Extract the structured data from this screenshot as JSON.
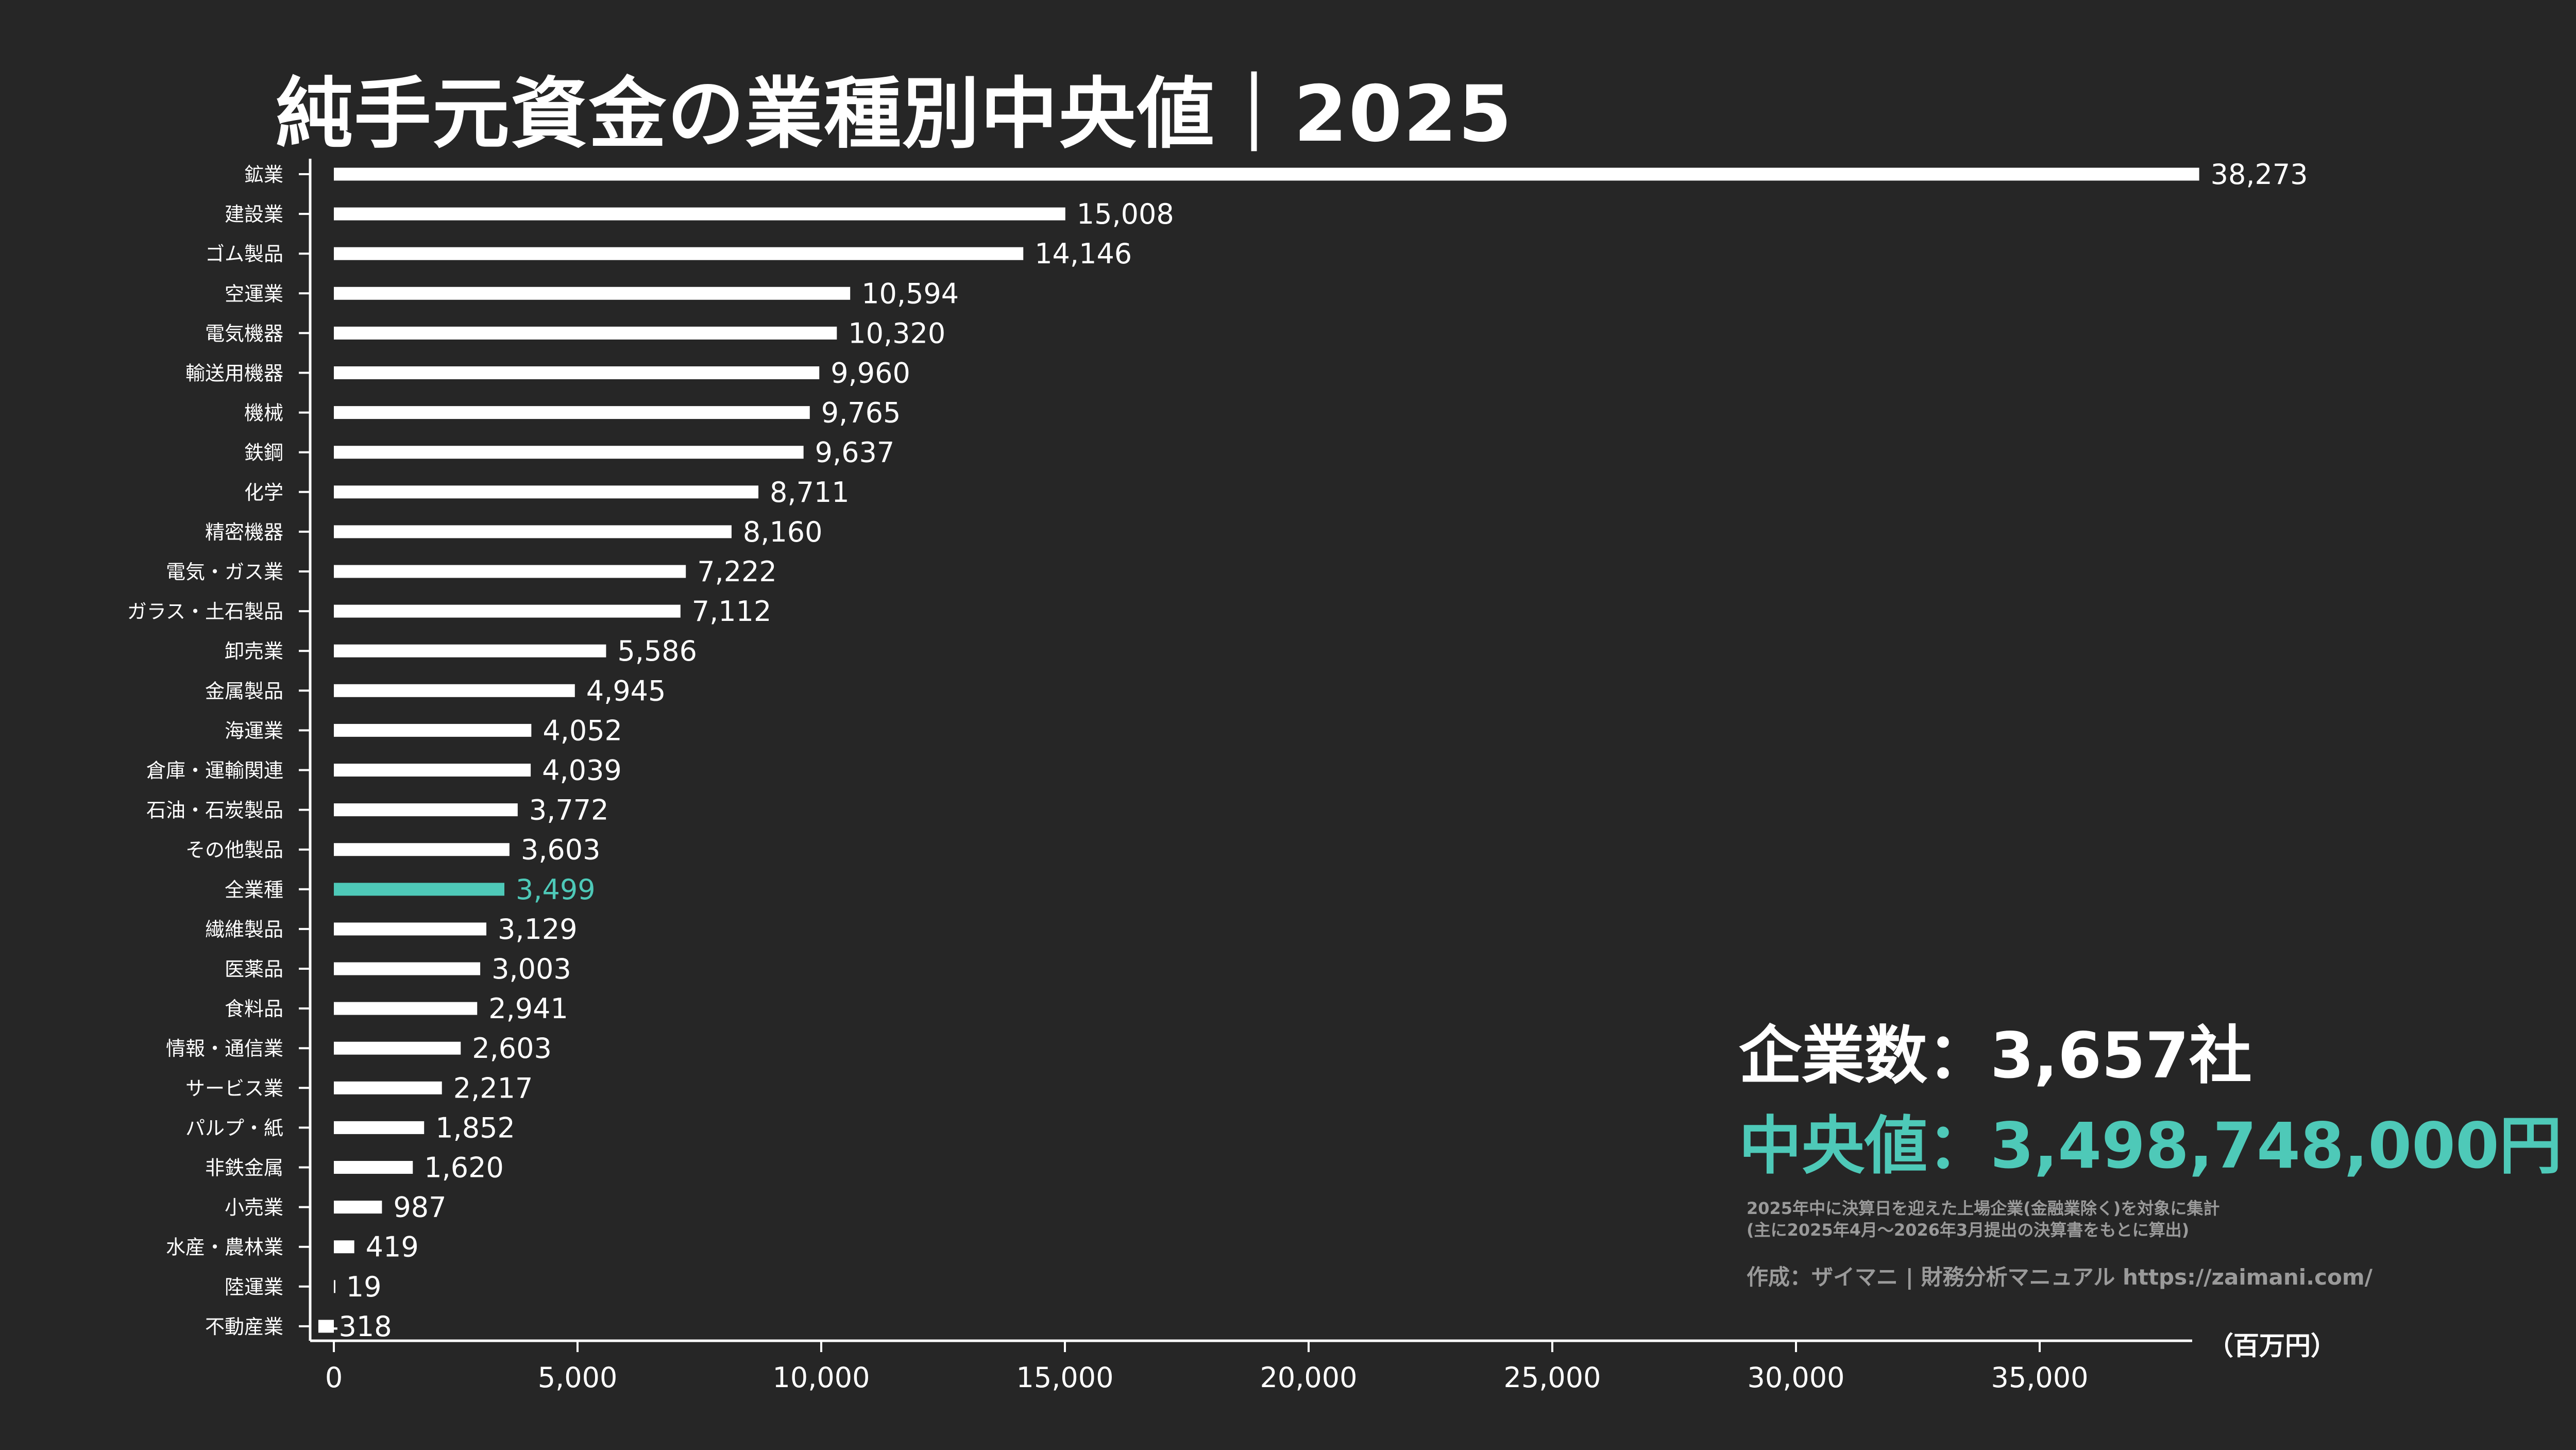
{
  "chart_data": {
    "type": "bar",
    "orientation": "horizontal",
    "title": "純手元資金の業種別中央値｜2025",
    "unit_label": "（百万円）",
    "xlim": [
      0,
      38273
    ],
    "x_ticks": [
      0,
      5000,
      10000,
      15000,
      20000,
      25000,
      30000,
      35000
    ],
    "x_tick_labels": [
      "0",
      "5,000",
      "10,000",
      "15,000",
      "20,000",
      "25,000",
      "30,000",
      "35,000"
    ],
    "grid": false,
    "categories": [
      "鉱業",
      "建設業",
      "ゴム製品",
      "空運業",
      "電気機器",
      "輸送用機器",
      "機械",
      "鉄鋼",
      "化学",
      "精密機器",
      "電気・ガス業",
      "ガラス・土石製品",
      "卸売業",
      "金属製品",
      "海運業",
      "倉庫・運輸関連",
      "石油・石炭製品",
      "その他製品",
      "全業種",
      "繊維製品",
      "医薬品",
      "食料品",
      "情報・通信業",
      "サービス業",
      "パルプ・紙",
      "非鉄金属",
      "小売業",
      "水産・農林業",
      "陸運業",
      "不動産業"
    ],
    "values": [
      38273,
      15008,
      14146,
      10594,
      10320,
      9960,
      9765,
      9637,
      8711,
      8160,
      7222,
      7112,
      5586,
      4945,
      4052,
      4039,
      3772,
      3603,
      3499,
      3129,
      3003,
      2941,
      2603,
      2217,
      1852,
      1620,
      987,
      419,
      19,
      -318
    ],
    "value_labels": [
      "38,273",
      "15,008",
      "14,146",
      "10,594",
      "10,320",
      "9,960",
      "9,765",
      "9,637",
      "8,711",
      "8,160",
      "7,222",
      "7,112",
      "5,586",
      "4,945",
      "4,052",
      "4,039",
      "3,772",
      "3,603",
      "3,499",
      "3,129",
      "3,003",
      "2,941",
      "2,603",
      "2,217",
      "1,852",
      "1,620",
      "987",
      "419",
      "19",
      "-318"
    ],
    "highlight_category": "全業種",
    "colors": {
      "bar": "#ffffff",
      "highlight": "#4ec9b8",
      "axis": "#ffffff",
      "label": "#ffffff",
      "background": "#262626"
    }
  },
  "info": {
    "company_count": "企業数：3,657社",
    "median": "中央値：3,498,748,000円",
    "note_line1": "2025年中に決算日を迎えた上場企業(金融業除く)を対象に集計",
    "note_line2": "(主に2025年4月～2026年3月提出の決算書をもとに算出)",
    "credit": "作成：ザイマニ | 財務分析マニュアル https://zaimani.com/"
  }
}
